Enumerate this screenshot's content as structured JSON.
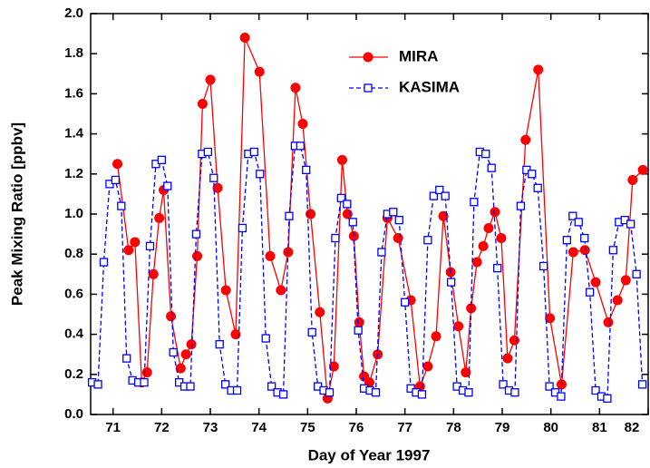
{
  "chart_data": {
    "type": "line",
    "xlabel": "Day of Year 1997",
    "ylabel": "Peak Mixing Ratio [ppbv]",
    "xlim": [
      70.54,
      82.0
    ],
    "xticks": [
      71,
      72,
      73,
      74,
      75,
      76,
      77,
      78,
      79,
      80,
      81,
      82
    ],
    "ylim": [
      0,
      2
    ],
    "yticks": [
      {
        "value": 0,
        "label": "0.0"
      },
      0.2,
      0.4,
      0.6,
      0.8,
      {
        "value": 1,
        "label": "1.0"
      },
      1.2,
      1.4,
      1.6,
      1.8,
      {
        "value": 2,
        "label": "2.0"
      }
    ],
    "legend": "upper center",
    "series": [
      {
        "name": "MIRA",
        "color": "#ff0000",
        "marker": "circle",
        "dashed": false,
        "x": [
          71.09,
          71.32,
          71.45,
          71.59,
          71.7,
          71.83,
          71.95,
          72.04,
          72.19,
          72.39,
          72.5,
          72.61,
          72.73,
          72.84,
          73.0,
          73.15,
          73.32,
          73.52,
          73.71,
          74.01,
          74.23,
          74.45,
          74.6,
          74.75,
          74.9,
          75.06,
          75.25,
          75.41,
          75.54,
          75.71,
          75.82,
          75.95,
          76.06,
          76.16,
          76.27,
          76.44,
          76.64,
          76.86,
          77.12,
          77.31,
          77.47,
          77.64,
          77.79,
          77.94,
          78.1,
          78.25,
          78.36,
          78.48,
          78.61,
          78.72,
          78.85,
          78.98,
          79.11,
          79.25,
          79.48,
          79.74,
          79.98,
          80.22,
          80.46,
          80.7,
          80.92,
          81.18,
          81.37,
          81.54,
          81.68,
          81.89
        ],
        "values": [
          1.25,
          0.82,
          0.86,
          0.16,
          0.21,
          0.7,
          0.98,
          1.12,
          0.49,
          0.23,
          0.3,
          0.35,
          0.79,
          1.55,
          1.67,
          1.13,
          0.62,
          0.4,
          1.88,
          1.71,
          0.79,
          0.62,
          0.81,
          1.63,
          1.45,
          1.0,
          0.51,
          0.08,
          0.24,
          1.27,
          1.0,
          0.89,
          0.46,
          0.19,
          0.16,
          0.3,
          0.98,
          0.88,
          0.57,
          0.14,
          0.24,
          0.39,
          0.99,
          0.71,
          0.44,
          0.21,
          0.53,
          0.76,
          0.84,
          0.93,
          1.01,
          0.88,
          0.28,
          0.37,
          1.37,
          1.72,
          0.48,
          0.15,
          0.81,
          0.82,
          0.66,
          0.46,
          0.57,
          0.67,
          1.17,
          1.22
        ]
      },
      {
        "name": "KASIMA",
        "color": "#0000ff",
        "marker": "square",
        "dashed": true,
        "x": [
          70.57,
          70.69,
          70.81,
          70.93,
          71.05,
          71.17,
          71.28,
          71.4,
          71.52,
          71.64,
          71.76,
          71.88,
          72.0,
          72.12,
          72.24,
          72.36,
          72.47,
          72.59,
          72.71,
          72.83,
          72.95,
          73.07,
          73.19,
          73.31,
          73.43,
          73.55,
          73.66,
          73.78,
          73.9,
          74.02,
          74.14,
          74.26,
          74.38,
          74.5,
          74.62,
          74.74,
          74.85,
          74.97,
          75.09,
          75.21,
          75.33,
          75.45,
          75.57,
          75.69,
          75.81,
          75.93,
          76.04,
          76.16,
          76.28,
          76.4,
          76.52,
          76.64,
          76.76,
          76.88,
          77.0,
          77.12,
          77.23,
          77.35,
          77.47,
          77.59,
          77.71,
          77.83,
          77.95,
          78.07,
          78.19,
          78.31,
          78.42,
          78.54,
          78.66,
          78.78,
          78.9,
          79.02,
          79.14,
          79.26,
          79.38,
          79.5,
          79.61,
          79.73,
          79.85,
          79.97,
          80.09,
          80.21,
          80.33,
          80.45,
          80.57,
          80.69,
          80.8,
          80.92,
          81.04,
          81.16,
          81.28,
          81.4,
          81.52,
          81.64,
          81.76,
          81.88
        ],
        "values": [
          0.16,
          0.15,
          0.76,
          1.15,
          1.17,
          1.04,
          0.28,
          0.17,
          0.16,
          0.16,
          0.84,
          1.25,
          1.27,
          1.14,
          0.31,
          0.16,
          0.14,
          0.14,
          0.9,
          1.3,
          1.31,
          1.18,
          0.35,
          0.15,
          0.12,
          0.12,
          0.93,
          1.3,
          1.31,
          1.2,
          0.38,
          0.14,
          0.11,
          0.1,
          0.99,
          1.34,
          1.34,
          1.22,
          0.41,
          0.14,
          0.12,
          0.11,
          0.88,
          1.08,
          1.05,
          0.96,
          0.42,
          0.13,
          0.12,
          0.11,
          0.81,
          1.0,
          1.01,
          0.97,
          0.56,
          0.13,
          0.11,
          0.1,
          0.87,
          1.09,
          1.12,
          1.09,
          0.66,
          0.14,
          0.12,
          0.11,
          1.06,
          1.31,
          1.3,
          1.23,
          0.73,
          0.15,
          0.12,
          0.11,
          1.04,
          1.22,
          1.2,
          1.13,
          0.74,
          0.14,
          0.11,
          0.09,
          0.87,
          0.99,
          0.96,
          0.88,
          0.61,
          0.12,
          0.09,
          0.08,
          0.82,
          0.96,
          0.97,
          0.95,
          0.7,
          0.15
        ]
      }
    ]
  }
}
